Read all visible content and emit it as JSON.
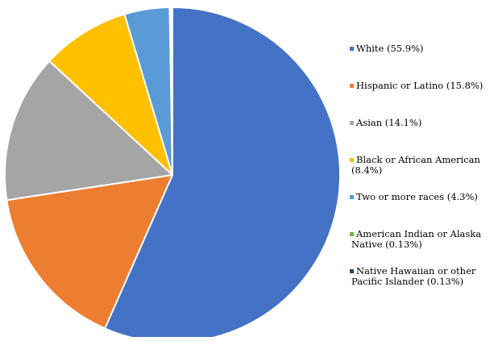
{
  "chart_data": {
    "type": "pie",
    "title": "",
    "start_angle_deg": 0,
    "direction": "clockwise",
    "legend_position": "right",
    "slices": [
      {
        "label_lines": [
          "White (55.9%)"
        ],
        "value": 55.9,
        "color": "#4472c4"
      },
      {
        "label_lines": [
          "Hispanic or Latino (15.8%)"
        ],
        "value": 15.8,
        "color": "#ed7d31"
      },
      {
        "label_lines": [
          "Asian (14.1%)"
        ],
        "value": 14.1,
        "color": "#a5a5a5"
      },
      {
        "label_lines": [
          "Black or African American",
          "(8.4%)"
        ],
        "value": 8.4,
        "color": "#ffc000"
      },
      {
        "label_lines": [
          "Two or more races (4.3%)"
        ],
        "value": 4.3,
        "color": "#5b9bd5"
      },
      {
        "label_lines": [
          "American Indian or Alaska",
          "Native (0.13%)"
        ],
        "value": 0.13,
        "color": "#70ad47"
      },
      {
        "label_lines": [
          "Native Hawaiian or other",
          "Pacific Islander (0.13%)"
        ],
        "value": 0.13,
        "color": "#264478"
      }
    ]
  }
}
